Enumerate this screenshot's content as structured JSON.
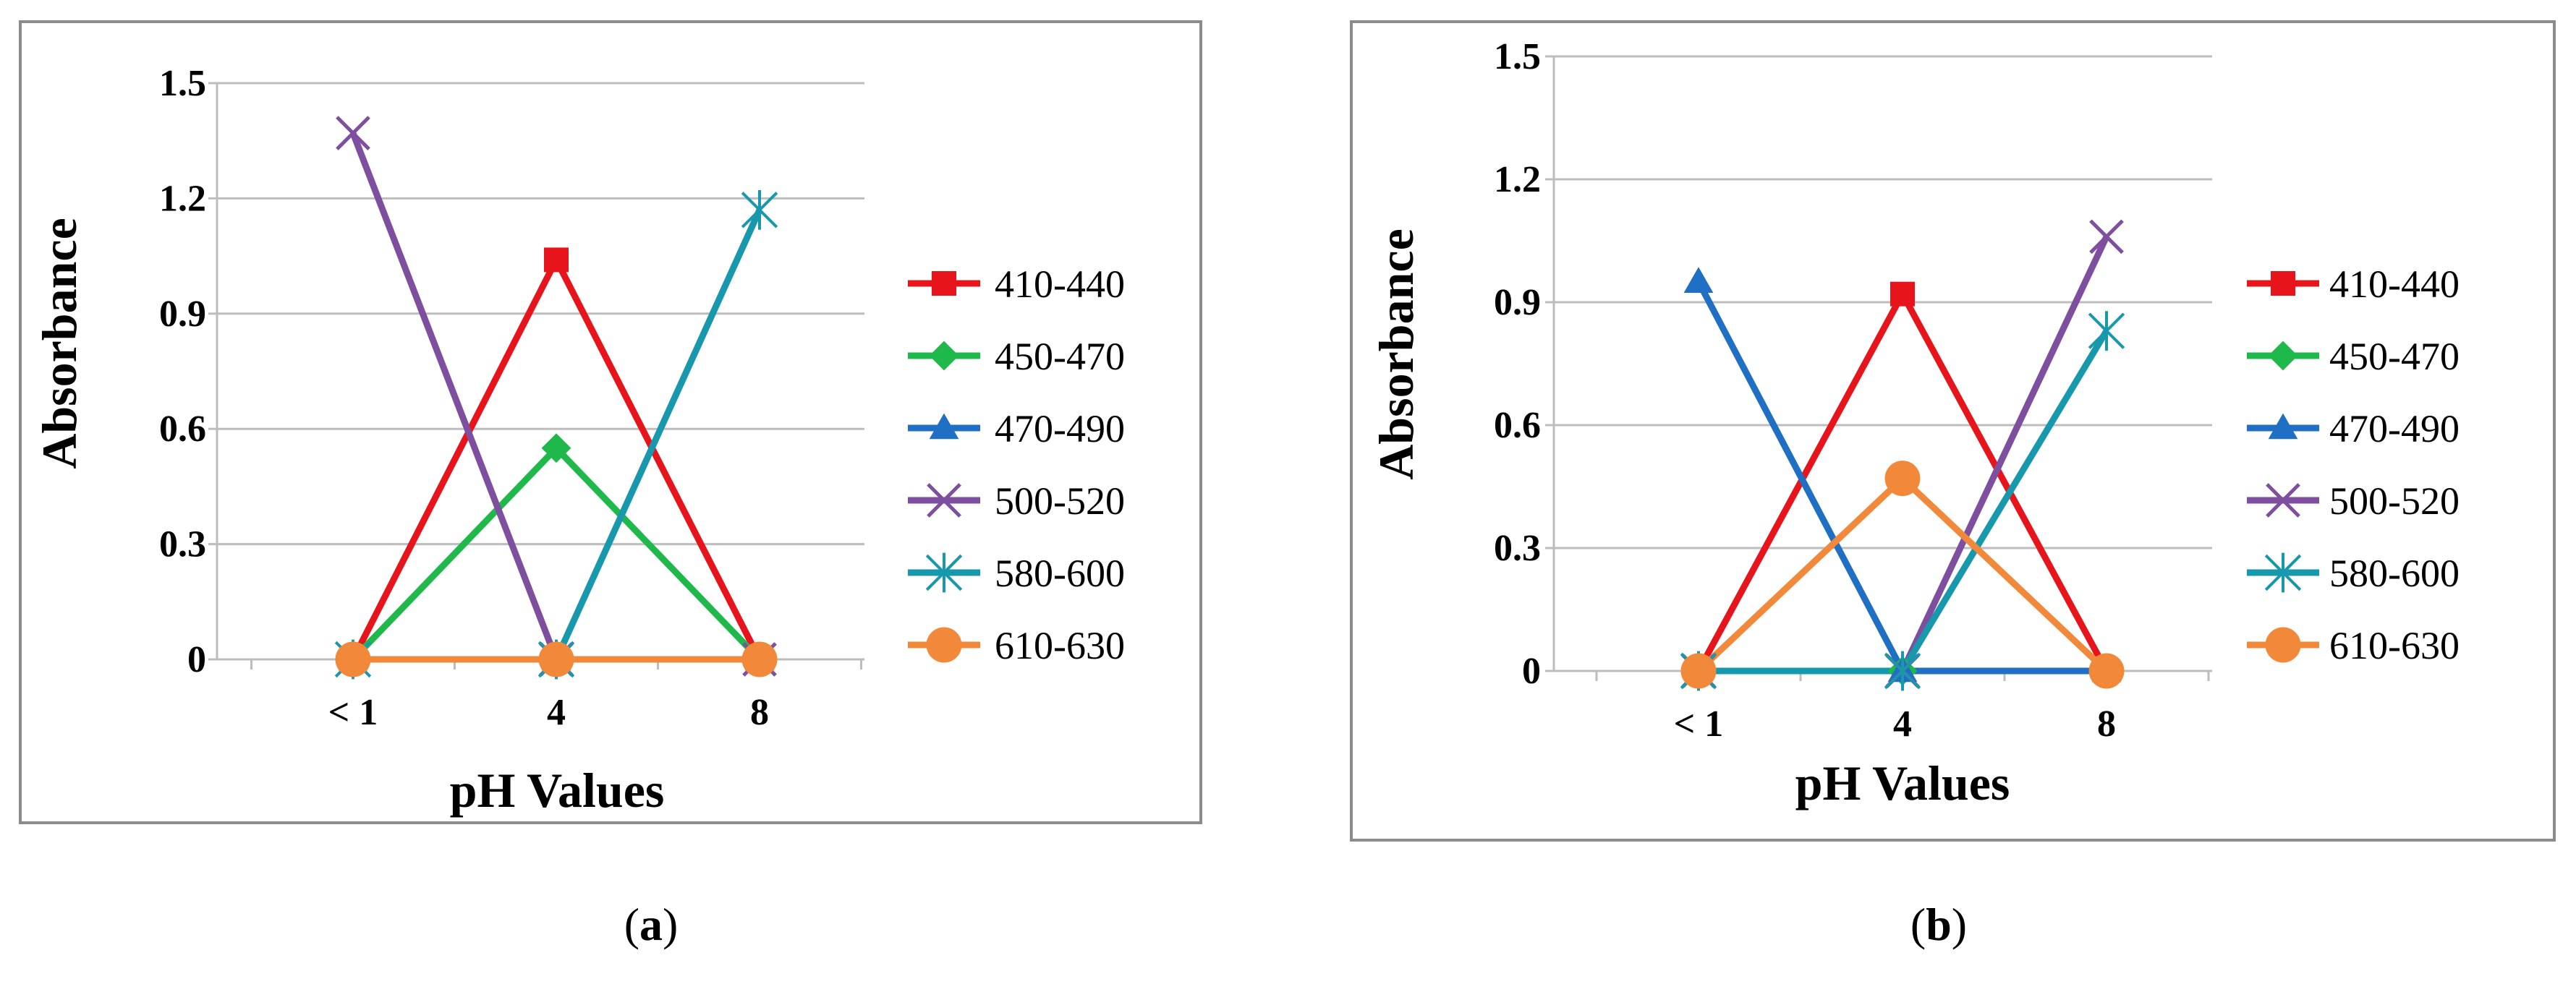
{
  "colors": {
    "410-440": "#e8141b",
    "450-470": "#1fb84a",
    "470-490": "#1f6fc4",
    "500-520": "#7d4f9e",
    "580-600": "#1898ad",
    "610-630": "#f2883a",
    "grid": "#bdbdbd",
    "frame": "#8c8c8c"
  },
  "chart_data": [
    {
      "type": "line",
      "caption": "a",
      "xlabel": "pH Values",
      "ylabel": "Absorbance",
      "categories": [
        "< 1",
        "4",
        "8"
      ],
      "ylim": [
        0,
        1.5
      ],
      "yticks": [
        "0",
        "0.3",
        "0.6",
        "0.9",
        "1.2",
        "1.5"
      ],
      "grid": true,
      "legend_position": "right",
      "series": [
        {
          "name": "410-440",
          "marker": "square",
          "values": [
            0,
            1.04,
            0
          ]
        },
        {
          "name": "450-470",
          "marker": "diamond",
          "values": [
            0,
            0.55,
            0
          ]
        },
        {
          "name": "470-490",
          "marker": "triangle",
          "values": [
            0,
            0,
            0
          ]
        },
        {
          "name": "500-520",
          "marker": "x",
          "values": [
            1.37,
            0,
            0
          ]
        },
        {
          "name": "580-600",
          "marker": "star",
          "values": [
            0,
            0,
            1.17
          ]
        },
        {
          "name": "610-630",
          "marker": "circle",
          "values": [
            0,
            0,
            0
          ]
        }
      ]
    },
    {
      "type": "line",
      "caption": "b",
      "xlabel": "pH Values",
      "ylabel": "Absorbance",
      "categories": [
        "< 1",
        "4",
        "8"
      ],
      "ylim": [
        0,
        1.5
      ],
      "yticks": [
        "0",
        "0.3",
        "0.6",
        "0.9",
        "1.2",
        "1.5"
      ],
      "grid": true,
      "legend_position": "right",
      "series": [
        {
          "name": "410-440",
          "marker": "square",
          "values": [
            0,
            0.92,
            0
          ]
        },
        {
          "name": "450-470",
          "marker": "diamond",
          "values": [
            0,
            0,
            0
          ]
        },
        {
          "name": "470-490",
          "marker": "triangle",
          "values": [
            0.95,
            0,
            0
          ]
        },
        {
          "name": "500-520",
          "marker": "x",
          "values": [
            0,
            0,
            1.06
          ]
        },
        {
          "name": "580-600",
          "marker": "star",
          "values": [
            0,
            0,
            0.83
          ]
        },
        {
          "name": "610-630",
          "marker": "circle",
          "values": [
            0,
            0.47,
            0
          ]
        }
      ]
    }
  ]
}
